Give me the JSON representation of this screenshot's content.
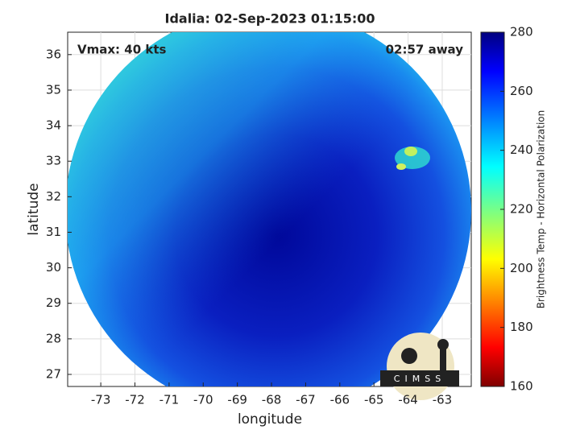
{
  "title": "Idalia: 02-Sep-2023 01:15:00",
  "annotations": {
    "vmax": "Vmax: 40 kts",
    "away": "02:57 away"
  },
  "axes": {
    "xlabel": "longitude",
    "ylabel": "latitude",
    "xlim": [
      -73.97,
      -62.15
    ],
    "xticks": [
      -73,
      -72,
      -71,
      -70,
      -69,
      -68,
      -67,
      -66,
      -65,
      -64,
      -63
    ],
    "ylim": [
      26.66,
      36.63
    ],
    "yticks": [
      27,
      28,
      29,
      30,
      31,
      32,
      33,
      34,
      35,
      36
    ]
  },
  "colorbar": {
    "label": "Brightness Temp - Horizontal Polarization",
    "lim": [
      160,
      280
    ],
    "ticks": [
      160,
      180,
      200,
      220,
      240,
      260,
      280
    ]
  },
  "logo": "CIMSS"
}
